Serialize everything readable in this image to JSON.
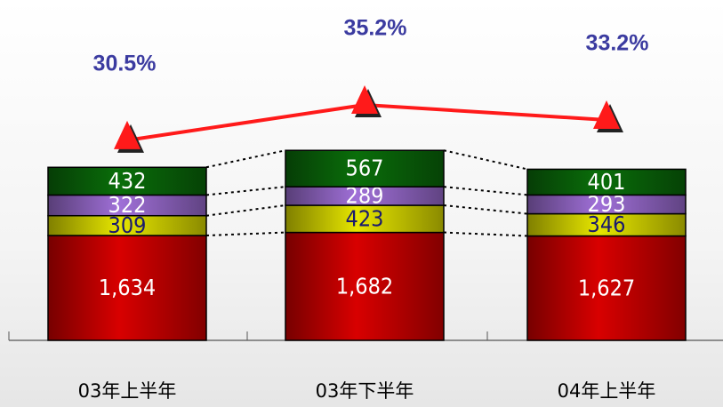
{
  "chart_data": {
    "type": "bar",
    "stacked": true,
    "categories": [
      "03年上半年",
      "03年下半年",
      "04年上半年"
    ],
    "series": [
      {
        "color": "#d80000",
        "values": [
          1634,
          1682,
          1627
        ],
        "value_labels": [
          "1,634",
          "1,682",
          "1,627"
        ]
      },
      {
        "color": "#e6e600",
        "values": [
          309,
          423,
          346
        ]
      },
      {
        "color": "#a070d8",
        "values": [
          322,
          289,
          293
        ]
      },
      {
        "color": "#0a6e0a",
        "values": [
          432,
          567,
          401
        ]
      },
      {
        "type": "line",
        "axis": "y2",
        "color": "#ff1a1a",
        "values": [
          30.5,
          35.2,
          33.2
        ],
        "value_labels": [
          "30.5%",
          "35.2%",
          "33.2%"
        ]
      }
    ],
    "ylim": [
      0,
      5000
    ],
    "y2lim": [
      4,
      46.5
    ]
  }
}
